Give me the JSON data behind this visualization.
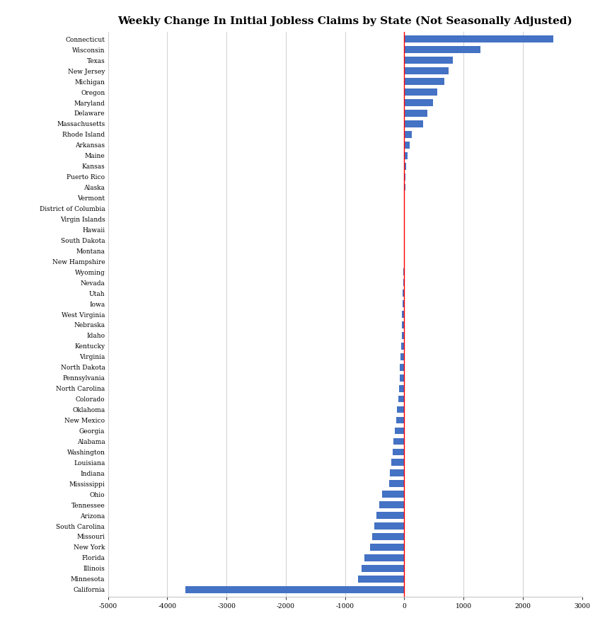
{
  "title": "Weekly Change In Initial Jobless Claims by State (Not Seasonally Adjusted)",
  "states": [
    "Connecticut",
    "Wisconsin",
    "Texas",
    "New Jersey",
    "Michigan",
    "Oregon",
    "Maryland",
    "Delaware",
    "Massachusetts",
    "Rhode Island",
    "Arkansas",
    "Maine",
    "Kansas",
    "Puerto Rico",
    "Alaska",
    "Vermont",
    "District of Columbia",
    "Virgin Islands",
    "Hawaii",
    "South Dakota",
    "Montana",
    "New Hampshire",
    "Wyoming",
    "Nevada",
    "Utah",
    "Iowa",
    "West Virginia",
    "Nebraska",
    "Idaho",
    "Kentucky",
    "Virginia",
    "North Dakota",
    "Pennsylvania",
    "North Carolina",
    "Colorado",
    "Oklahoma",
    "New Mexico",
    "Georgia",
    "Alabama",
    "Washington",
    "Louisiana",
    "Indiana",
    "Mississippi",
    "Ohio",
    "Tennessee",
    "Arizona",
    "South Carolina",
    "Missouri",
    "New York",
    "Florida",
    "Illinois",
    "Minnesota",
    "California"
  ],
  "values": [
    2510,
    1290,
    820,
    750,
    680,
    560,
    480,
    390,
    320,
    130,
    90,
    50,
    30,
    20,
    15,
    10,
    8,
    5,
    3,
    -5,
    -8,
    -10,
    -15,
    -20,
    -25,
    -30,
    -35,
    -40,
    -45,
    -55,
    -65,
    -70,
    -80,
    -90,
    -100,
    -120,
    -140,
    -160,
    -180,
    -200,
    -220,
    -240,
    -260,
    -380,
    -420,
    -470,
    -500,
    -540,
    -580,
    -670,
    -720,
    -780,
    -3700
  ],
  "bar_color": "#4472C4",
  "zero_line_color": "#FF0000",
  "xlim": [
    -5000,
    3000
  ],
  "xticks": [
    -5000,
    -4000,
    -3000,
    -2000,
    -1000,
    0,
    1000,
    2000,
    3000
  ],
  "background_color": "#FFFFFF",
  "grid_color": "#C8C8C8",
  "title_fontsize": 11,
  "tick_fontsize": 6.5,
  "bar_height": 0.65
}
